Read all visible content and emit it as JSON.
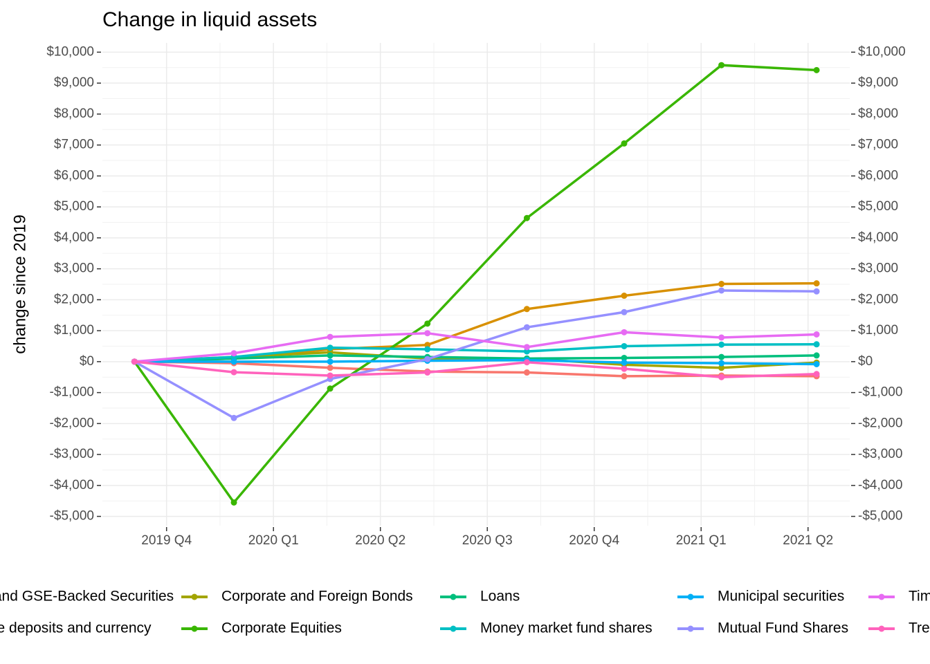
{
  "chart_data": {
    "type": "line",
    "title": "Change in liquid assets",
    "y_label": "change since 2019",
    "x": [
      -0.3,
      0.63,
      1.53,
      2.44,
      3.37,
      4.28,
      5.19,
      6.08
    ],
    "xlim": [
      -0.6,
      6.39
    ],
    "xticks": [
      {
        "value": 0,
        "label": "2019 Q4"
      },
      {
        "value": 1,
        "label": "2020 Q1"
      },
      {
        "value": 2,
        "label": "2020 Q2"
      },
      {
        "value": 3,
        "label": "2020 Q3"
      },
      {
        "value": 4,
        "label": "2020 Q4"
      },
      {
        "value": 5,
        "label": "2021 Q1"
      },
      {
        "value": 6,
        "label": "2021 Q2"
      }
    ],
    "ylim": [
      -5300,
      10300
    ],
    "yticks": [
      {
        "value": -5000,
        "label": "-$5,000"
      },
      {
        "value": -4000,
        "label": "-$4,000"
      },
      {
        "value": -3000,
        "label": "-$3,000"
      },
      {
        "value": -2000,
        "label": "-$2,000"
      },
      {
        "value": -1000,
        "label": "-$1,000"
      },
      {
        "value": 0,
        "label": "$0"
      },
      {
        "value": 1000,
        "label": "$1,000"
      },
      {
        "value": 2000,
        "label": "$2,000"
      },
      {
        "value": 3000,
        "label": "$3,000"
      },
      {
        "value": 4000,
        "label": "$4,000"
      },
      {
        "value": 5000,
        "label": "$5,000"
      },
      {
        "value": 6000,
        "label": "$6,000"
      },
      {
        "value": 7000,
        "label": "$7,000"
      },
      {
        "value": 8000,
        "label": "$8,000"
      },
      {
        "value": 9000,
        "label": "$9,000"
      },
      {
        "value": 10000,
        "label": "$10,000"
      }
    ],
    "grid": true,
    "legend": "bottom",
    "series": [
      {
        "name": "Agency- and GSE-Backed Securities",
        "color": "#F8766D",
        "values": [
          0,
          -50,
          -200,
          -320,
          -350,
          -470,
          -450,
          -470
        ]
      },
      {
        "name": "Checkable deposits and currency",
        "color": "#D89000",
        "values": [
          0,
          100,
          400,
          540,
          1700,
          2130,
          2510,
          2530
        ]
      },
      {
        "name": "Corporate and Foreign Bonds",
        "color": "#A3A500",
        "values": [
          0,
          150,
          300,
          100,
          100,
          -100,
          -200,
          -30
        ]
      },
      {
        "name": "Corporate Equities",
        "color": "#39B600",
        "values": [
          0,
          -4550,
          -870,
          1230,
          4640,
          7050,
          9580,
          9420
        ]
      },
      {
        "name": "Loans",
        "color": "#00BF7D",
        "values": [
          0,
          100,
          200,
          150,
          100,
          120,
          150,
          200
        ]
      },
      {
        "name": "Money market fund shares",
        "color": "#00BFC4",
        "values": [
          0,
          150,
          450,
          400,
          330,
          500,
          550,
          560
        ]
      },
      {
        "name": "Municipal securities",
        "color": "#00B0F6",
        "values": [
          0,
          0,
          0,
          30,
          50,
          -30,
          -50,
          -80
        ]
      },
      {
        "name": "Mutual Fund Shares",
        "color": "#9590FF",
        "values": [
          0,
          -1820,
          -560,
          80,
          1110,
          1600,
          2300,
          2270
        ]
      },
      {
        "name": "Time and savings deposits",
        "color": "#E76BF3",
        "values": [
          0,
          270,
          800,
          920,
          470,
          950,
          780,
          880
        ]
      },
      {
        "name": "Treasury securities",
        "color": "#FF62BC",
        "values": [
          0,
          -340,
          -450,
          -350,
          -20,
          -230,
          -500,
          -400
        ]
      }
    ]
  }
}
